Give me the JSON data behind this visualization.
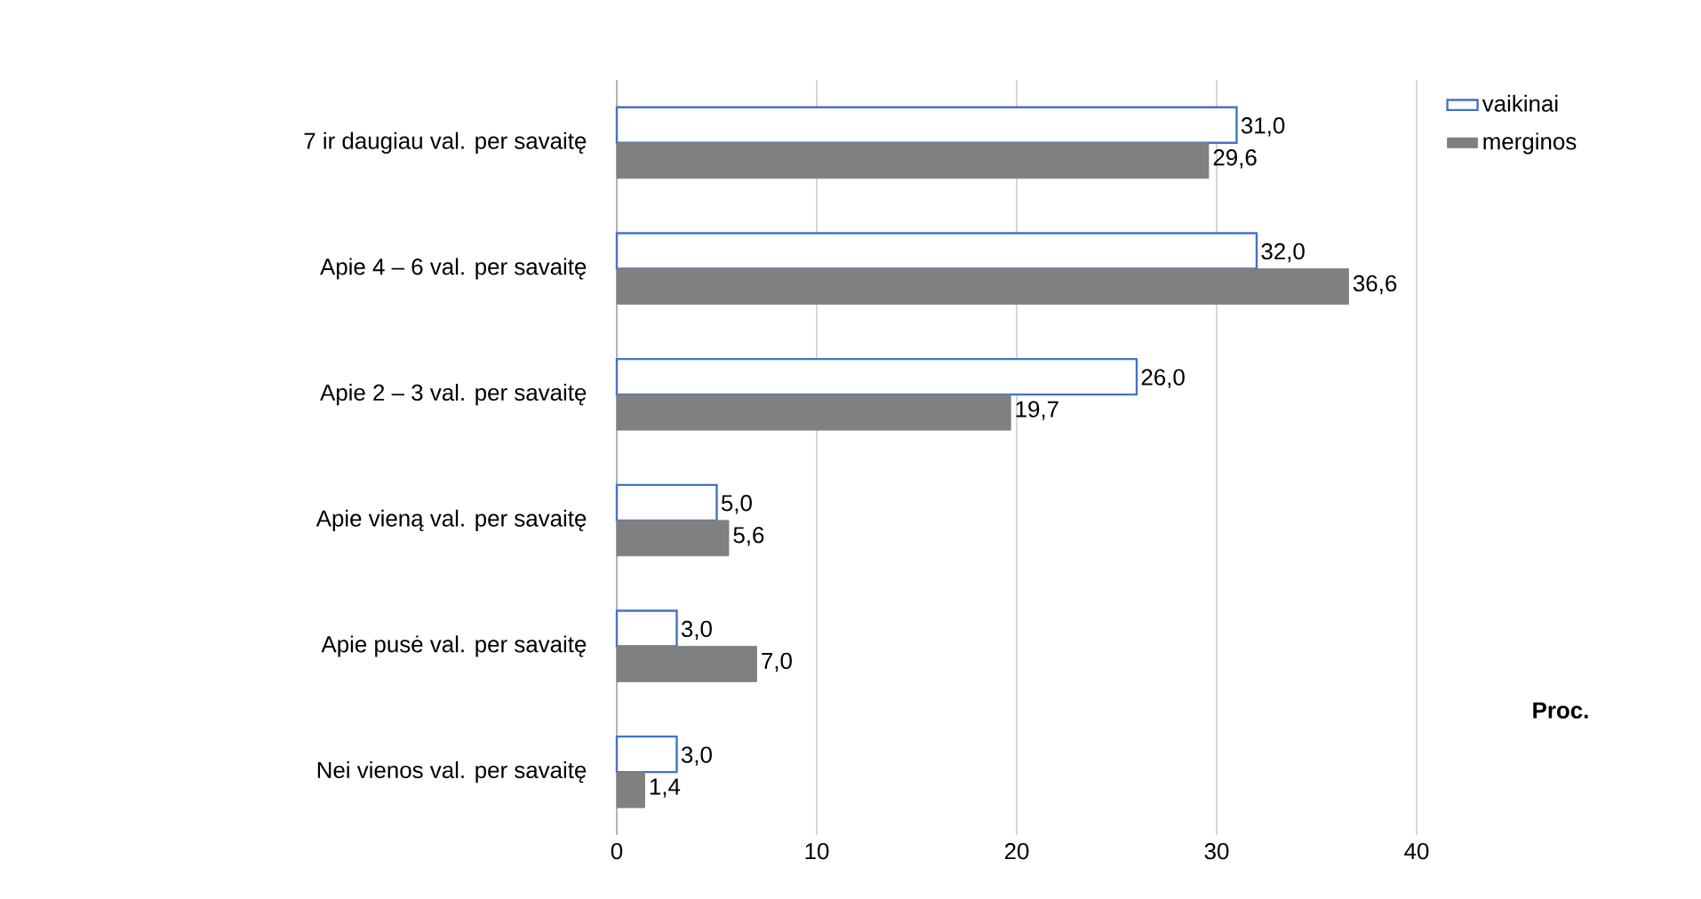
{
  "chart_data": {
    "type": "bar",
    "orientation": "horizontal",
    "xlabel": "Proc.",
    "categories": [
      "7 ir daugiau val. per savaitę",
      "Apie 4 – 6 val. per savaitę",
      "Apie 2 – 3 val. per savaitę",
      "Apie vieną val. per savaitę",
      "Apie pusė val. per savaitę",
      "Nei vienos val. per savaitę"
    ],
    "series": [
      {
        "name": "vaikinai",
        "color": "#ffffff",
        "values": [
          31.0,
          32.0,
          26.0,
          5.0,
          3.0,
          3.0
        ],
        "value_labels": [
          "31,0",
          "32,0",
          "26,0",
          "5,0",
          "3,0",
          "3,0"
        ]
      },
      {
        "name": "merginos",
        "color": "#808080",
        "values": [
          29.6,
          36.6,
          19.7,
          5.6,
          7.0,
          1.4
        ],
        "value_labels": [
          "29,6",
          "36,6",
          "19,7",
          "5,6",
          "7,0",
          "1,4"
        ]
      }
    ],
    "xlim": [
      0,
      40
    ],
    "xticks": [
      0,
      10,
      20,
      30,
      40
    ],
    "grid": "x",
    "legend": "top right"
  }
}
